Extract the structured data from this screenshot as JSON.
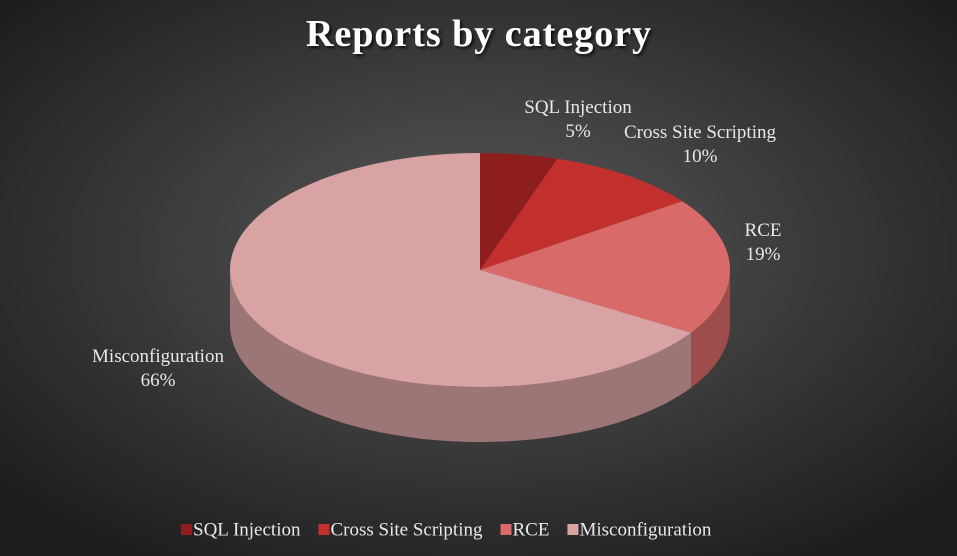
{
  "chart_data": {
    "type": "pie",
    "title": "Reports by category",
    "categories": [
      "SQL Injection",
      "Cross Site Scripting",
      "RCE",
      "Misconfiguration"
    ],
    "values": [
      5,
      10,
      19,
      66
    ],
    "value_labels": [
      "5%",
      "10%",
      "19%",
      "66%"
    ],
    "colors": [
      "#8e1d1d",
      "#c2302e",
      "#d86b6a",
      "#d9a3a4"
    ],
    "legend": "bottom"
  }
}
